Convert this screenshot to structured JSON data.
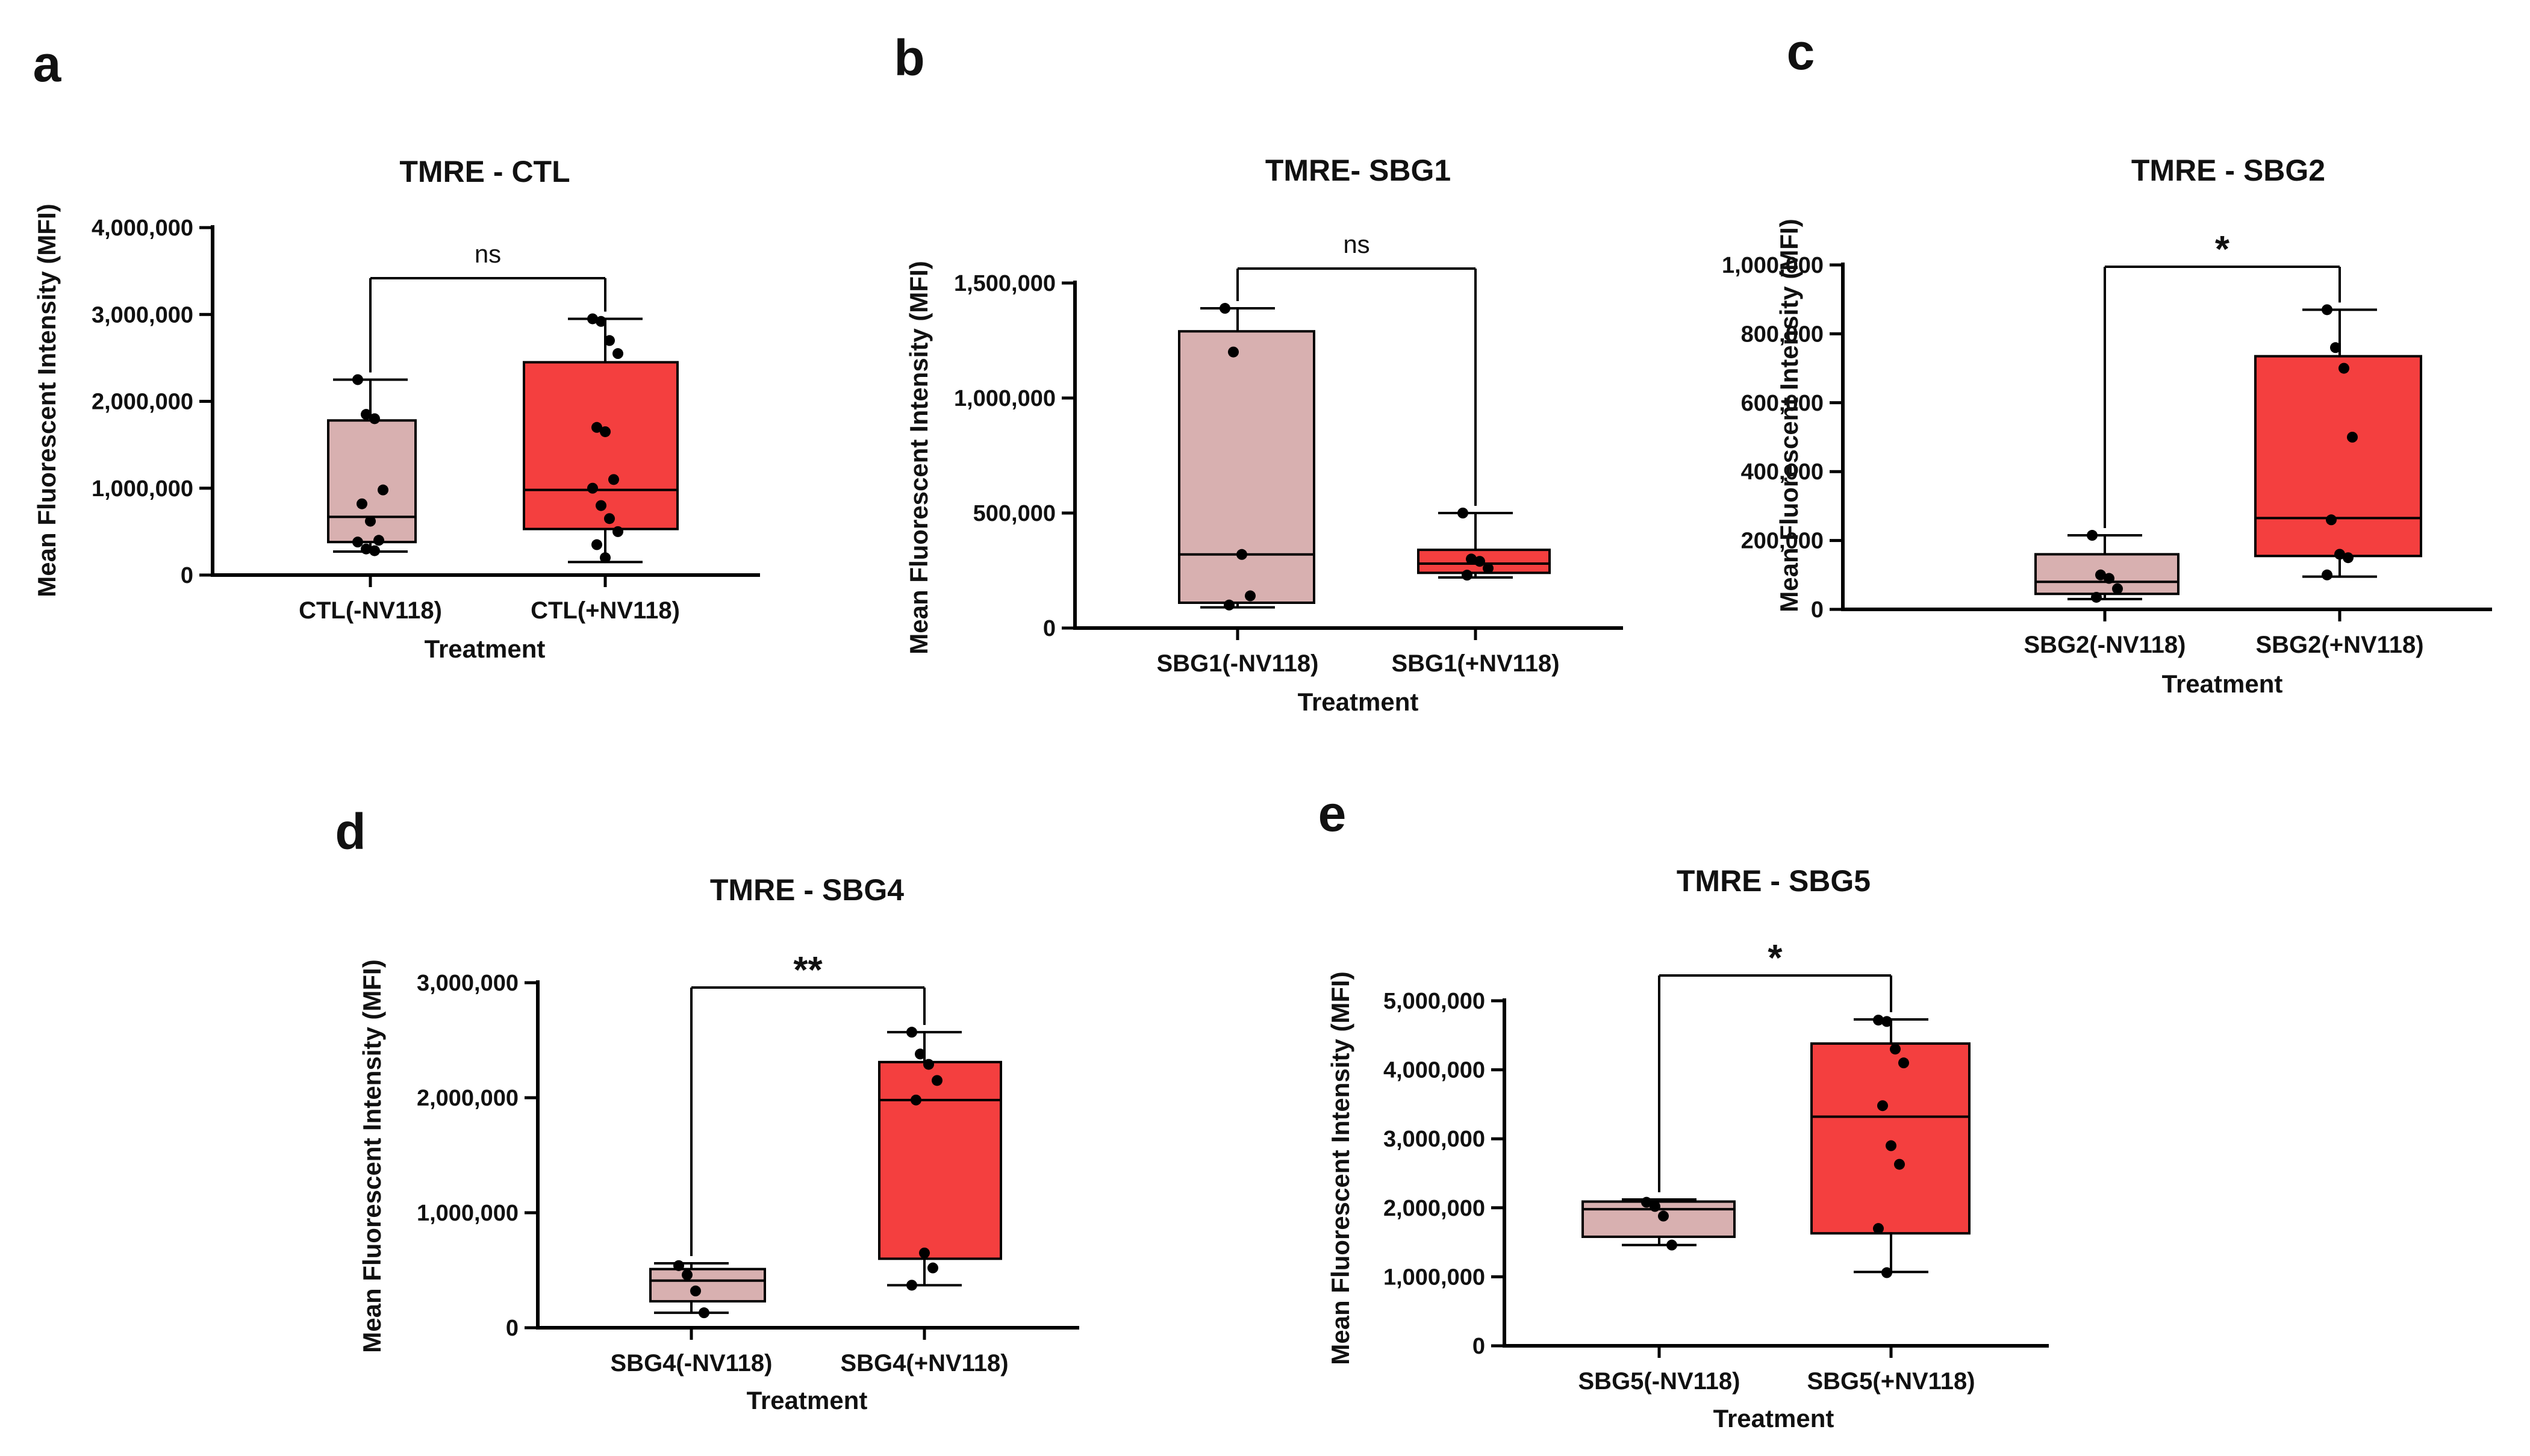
{
  "colors": {
    "control_box": "#d8b0b0",
    "treated_box": "#f43f3f",
    "line": "#000000",
    "point": "#000000"
  },
  "chart_data": [
    {
      "id": "a",
      "panel_label": "a",
      "type": "box",
      "title": "TMRE - CTL",
      "ylabel": "Mean Fluorescent Intensity (MFI)",
      "xlabel": "Treatment",
      "ylim": [
        0,
        4000000
      ],
      "yticks": [
        0,
        1000000,
        2000000,
        3000000,
        4000000
      ],
      "ytick_labels": [
        "0",
        "1,000,000",
        "2,000,000",
        "3,000,000",
        "4,000,000"
      ],
      "significance": "ns",
      "categories": [
        "CTL(-NV118)",
        "CTL(+NV118)"
      ],
      "groups": [
        {
          "name": "CTL(-NV118)",
          "min": 270000,
          "q1": 380000,
          "median": 670000,
          "q3": 1780000,
          "max": 2250000,
          "points": [
            2250000,
            1850000,
            1800000,
            980000,
            820000,
            620000,
            400000,
            380000,
            300000,
            280000
          ]
        },
        {
          "name": "CTL(+NV118)",
          "min": 150000,
          "q1": 530000,
          "median": 980000,
          "q3": 2450000,
          "max": 2950000,
          "points": [
            2950000,
            2920000,
            2700000,
            2550000,
            1700000,
            1650000,
            1100000,
            1000000,
            800000,
            650000,
            500000,
            350000,
            200000
          ]
        }
      ]
    },
    {
      "id": "b",
      "panel_label": "b",
      "type": "box",
      "title": "TMRE- SBG1",
      "ylabel": "Mean Fluorescent Intensity (MFI)",
      "xlabel": "Treatment",
      "ylim": [
        0,
        1500000
      ],
      "yticks": [
        0,
        500000,
        1000000,
        1500000
      ],
      "ytick_labels": [
        "0",
        "500,000",
        "1,000,000",
        "1,500,000"
      ],
      "significance": "ns",
      "categories": [
        "SBG1(-NV118)",
        "SBG1(+NV118)"
      ],
      "groups": [
        {
          "name": "SBG1(-NV118)",
          "min": 90000,
          "q1": 110000,
          "median": 320000,
          "q3": 1290000,
          "max": 1390000,
          "points": [
            1390000,
            1200000,
            320000,
            140000,
            100000
          ]
        },
        {
          "name": "SBG1(+NV118)",
          "min": 220000,
          "q1": 240000,
          "median": 280000,
          "q3": 340000,
          "max": 500000,
          "points": [
            500000,
            300000,
            290000,
            260000,
            230000
          ]
        }
      ]
    },
    {
      "id": "c",
      "panel_label": "c",
      "type": "box",
      "title": "TMRE - SBG2",
      "ylabel": "Mean Fluorescent Intensity (MFI)",
      "xlabel": "Treatment",
      "ylim": [
        0,
        1000000
      ],
      "yticks": [
        0,
        200000,
        400000,
        600000,
        800000,
        1000000
      ],
      "ytick_labels": [
        "0",
        "200,000",
        "400,000",
        "600,000",
        "800,000",
        "1,000,000"
      ],
      "significance": "*",
      "categories": [
        "SBG2(-NV118)",
        "SBG2(+NV118)"
      ],
      "groups": [
        {
          "name": "SBG2(-NV118)",
          "min": 30000,
          "q1": 45000,
          "median": 80000,
          "q3": 160000,
          "max": 215000,
          "points": [
            215000,
            100000,
            90000,
            60000,
            35000
          ]
        },
        {
          "name": "SBG2(+NV118)",
          "min": 95000,
          "q1": 155000,
          "median": 265000,
          "q3": 735000,
          "max": 870000,
          "points": [
            870000,
            760000,
            700000,
            500000,
            260000,
            160000,
            150000,
            100000
          ]
        }
      ]
    },
    {
      "id": "d",
      "panel_label": "d",
      "type": "box",
      "title": "TMRE - SBG4",
      "ylabel": "Mean Fluorescent Intensity (MFI)",
      "xlabel": "Treatment",
      "ylim": [
        0,
        3000000
      ],
      "yticks": [
        0,
        1000000,
        2000000,
        3000000
      ],
      "ytick_labels": [
        "0",
        "1,000,000",
        "2,000,000",
        "3,000,000"
      ],
      "significance": "**",
      "categories": [
        "SBG4(-NV118)",
        "SBG4(+NV118)"
      ],
      "groups": [
        {
          "name": "SBG4(-NV118)",
          "min": 130000,
          "q1": 230000,
          "median": 410000,
          "q3": 510000,
          "max": 560000,
          "points": [
            540000,
            460000,
            320000,
            130000
          ]
        },
        {
          "name": "SBG4(+NV118)",
          "min": 370000,
          "q1": 600000,
          "median": 1980000,
          "q3": 2310000,
          "max": 2570000,
          "points": [
            2570000,
            2380000,
            2290000,
            2150000,
            1980000,
            650000,
            520000,
            370000
          ]
        }
      ]
    },
    {
      "id": "e",
      "panel_label": "e",
      "type": "box",
      "title": "TMRE - SBG5",
      "ylabel": "Mean Fluorescent Intensity (MFI)",
      "xlabel": "Treatment",
      "ylim": [
        0,
        5000000
      ],
      "yticks": [
        0,
        1000000,
        2000000,
        3000000,
        4000000,
        5000000
      ],
      "ytick_labels": [
        "0",
        "1,000,000",
        "2,000,000",
        "3,000,000",
        "4,000,000",
        "5,000,000"
      ],
      "significance": "*",
      "categories": [
        "SBG5(-NV118)",
        "SBG5(+NV118)"
      ],
      "groups": [
        {
          "name": "SBG5(-NV118)",
          "min": 1460000,
          "q1": 1580000,
          "median": 1980000,
          "q3": 2090000,
          "max": 2120000,
          "points": [
            2080000,
            2020000,
            1880000,
            1460000
          ]
        },
        {
          "name": "SBG5(+NV118)",
          "min": 1070000,
          "q1": 1630000,
          "median": 3320000,
          "q3": 4380000,
          "max": 4730000,
          "points": [
            4720000,
            4700000,
            4300000,
            4100000,
            3480000,
            2900000,
            2630000,
            1700000,
            1060000
          ]
        }
      ]
    }
  ]
}
